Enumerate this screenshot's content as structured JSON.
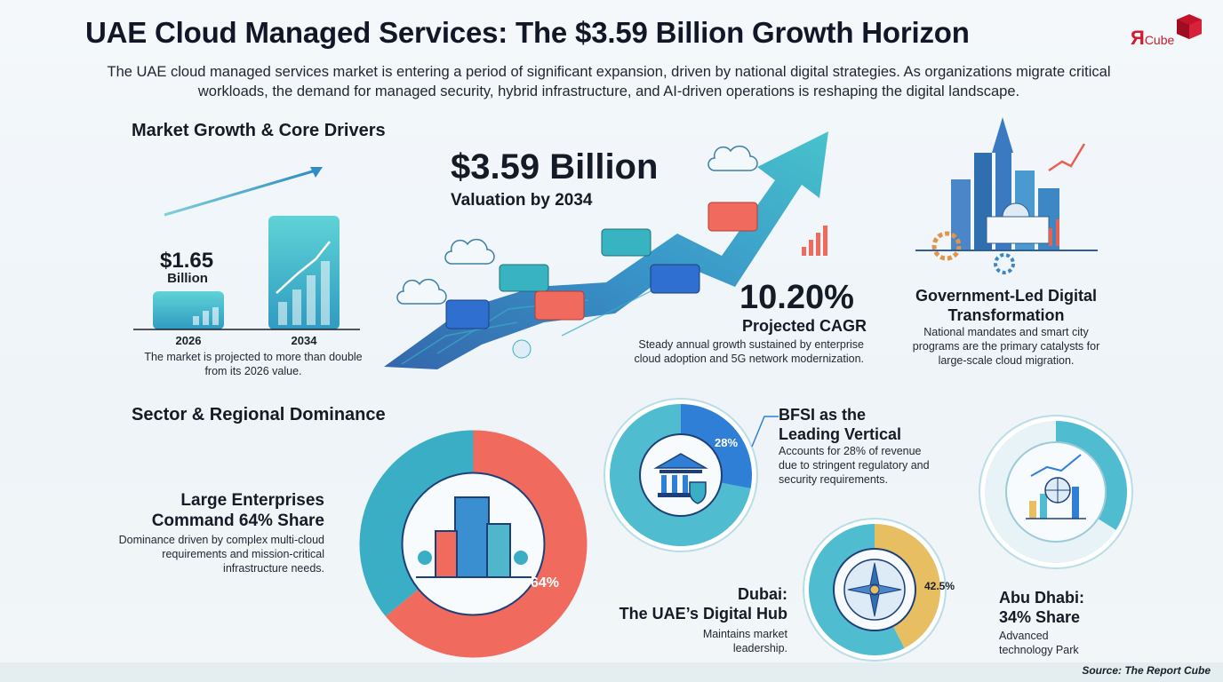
{
  "title": "UAE Cloud Managed Services: The $3.59 Billion Growth Horizon",
  "intro": "The UAE cloud managed services market is entering a period of significant expansion, driven by national digital strategies. As organizations migrate critical workloads, the demand for managed security, hybrid infrastructure, and AI-driven operations is reshaping the digital landscape.",
  "logo": {
    "text": "Я",
    "suffix": "Cube",
    "color": "#d11a2a"
  },
  "section_growth": "Market Growth & Core Drivers",
  "growth": {
    "value_2026": "$1.65",
    "value_2026_unit": "Billion",
    "year_2026": "2026",
    "year_2034": "2034",
    "note": "The market is projected to more than double from its 2026 value."
  },
  "valuation": {
    "value": "$3.59 Billion",
    "sub": "Valuation by 2034"
  },
  "cagr": {
    "value": "10.20%",
    "sub": "Projected CAGR",
    "note": "Steady annual growth sustained by enterprise cloud adoption and 5G network modernization."
  },
  "government": {
    "title": "Government-Led Digital Transformation",
    "note": "National mandates and smart city programs are the primary catalysts for large-scale cloud migration."
  },
  "section_sector": "Sector & Regional Dominance",
  "enterprises": {
    "title_line1": "Large Enterprises",
    "title_line2": "Command 64% Share",
    "note": "Dominance driven by complex multi-cloud requirements and mission-critical infrastructure needs.",
    "pct_label": "64%",
    "share": 0.64
  },
  "bfsi": {
    "title_line1": "BFSI as the",
    "title_line2": "Leading Vertical",
    "note": "Accounts for 28% of revenue due to stringent regulatory and security requirements.",
    "pct_label": "28%",
    "share": 0.28
  },
  "dubai": {
    "title_line1": "Dubai:",
    "title_line2": "The UAE’s Digital Hub",
    "note": "Maintains market leadership.",
    "pct_label": "42.5%",
    "share": 0.425
  },
  "abudhabi": {
    "title_line1": "Abu Dhabi:",
    "title_line2": "34% Share",
    "note": "Advanced technology Park",
    "share": 0.34
  },
  "source": "Source: The Report Cube",
  "colors": {
    "teal": "#3aaec4",
    "coral": "#f06a5e",
    "blue": "#2f7fd6",
    "gold": "#e8be62",
    "navy": "#1c3f7a"
  }
}
